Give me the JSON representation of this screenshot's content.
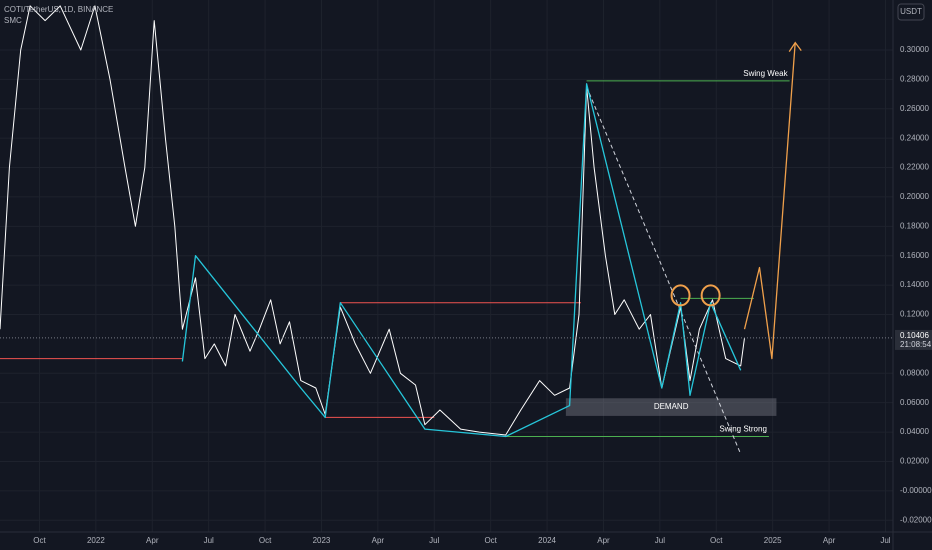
{
  "chart_data": {
    "type": "line",
    "title": "COTI/TetherUS, 1D, BINANCE",
    "subtitle": "SMC",
    "currency": "USDT",
    "last_price": 0.10406,
    "countdown": "21:08:54",
    "xlim": [
      -2.1,
      45.4
    ],
    "ylim": [
      -0.028,
      0.334
    ],
    "grid": true,
    "xticks": [
      {
        "value": 0,
        "label": "Oct"
      },
      {
        "value": 3,
        "label": "2022"
      },
      {
        "value": 6,
        "label": "Apr"
      },
      {
        "value": 9,
        "label": "Jul"
      },
      {
        "value": 12,
        "label": "Oct"
      },
      {
        "value": 15,
        "label": "2023"
      },
      {
        "value": 18,
        "label": "Apr"
      },
      {
        "value": 21,
        "label": "Jul"
      },
      {
        "value": 24,
        "label": "Oct"
      },
      {
        "value": 27,
        "label": "2024"
      },
      {
        "value": 30,
        "label": "Apr"
      },
      {
        "value": 33,
        "label": "Jul"
      },
      {
        "value": 36,
        "label": "Oct"
      },
      {
        "value": 39,
        "label": "2025"
      },
      {
        "value": 42,
        "label": "Apr"
      },
      {
        "value": 45,
        "label": "Jul"
      }
    ],
    "yticks": [
      {
        "value": 0.3,
        "label": "0.30000"
      },
      {
        "value": 0.28,
        "label": "0.28000"
      },
      {
        "value": 0.26,
        "label": "0.26000"
      },
      {
        "value": 0.24,
        "label": "0.24000"
      },
      {
        "value": 0.22,
        "label": "0.22000"
      },
      {
        "value": 0.2,
        "label": "0.20000"
      },
      {
        "value": 0.18,
        "label": "0.18000"
      },
      {
        "value": 0.16,
        "label": "0.16000"
      },
      {
        "value": 0.14,
        "label": "0.14000"
      },
      {
        "value": 0.12,
        "label": "0.12000"
      },
      {
        "value": 0.08,
        "label": "0.08000"
      },
      {
        "value": 0.06,
        "label": "0.06000"
      },
      {
        "value": 0.04,
        "label": "0.04000"
      },
      {
        "value": 0.02,
        "label": "0.02000"
      },
      {
        "value": 0,
        "label": "-0.00000"
      },
      {
        "value": -0.02,
        "label": "-0.02000"
      }
    ],
    "series": [
      {
        "color": "#ffffff",
        "x": [
          -2.1,
          -1.6,
          -1.0,
          -0.5,
          0.3,
          1.1,
          2.2,
          2.95,
          3.75,
          4.55,
          5.1,
          5.6,
          6.1,
          6.7,
          7.2,
          7.6,
          8.0,
          8.3,
          8.8,
          9.3,
          9.9,
          10.4,
          11.2,
          11.7,
          12.3,
          12.8,
          13.3,
          13.9,
          14.7,
          15.2,
          16.0,
          16.8,
          17.6,
          18.6,
          19.2,
          20.0,
          20.5,
          21.3,
          22.4,
          23.4,
          24.8,
          25.6,
          26.6,
          27.4,
          28.2,
          28.7,
          29.1,
          29.5,
          30.1,
          30.6,
          31.1,
          31.9,
          32.5,
          33.1,
          34.1,
          34.6,
          35.1,
          35.8,
          36.5,
          37.3,
          37.5
        ],
        "values": [
          0.11,
          0.22,
          0.3,
          0.33,
          0.32,
          0.33,
          0.3,
          0.33,
          0.28,
          0.22,
          0.18,
          0.22,
          0.32,
          0.24,
          0.18,
          0.11,
          0.13,
          0.145,
          0.09,
          0.1,
          0.085,
          0.12,
          0.095,
          0.11,
          0.13,
          0.1,
          0.115,
          0.075,
          0.07,
          0.052,
          0.125,
          0.1,
          0.08,
          0.11,
          0.08,
          0.072,
          0.045,
          0.055,
          0.042,
          0.04,
          0.038,
          0.055,
          0.075,
          0.065,
          0.07,
          0.12,
          0.275,
          0.22,
          0.16,
          0.12,
          0.13,
          0.11,
          0.12,
          0.07,
          0.125,
          0.075,
          0.11,
          0.13,
          0.09,
          0.085,
          0.104
        ]
      },
      {
        "color": "#26c6da",
        "x": [
          7.6,
          8.3,
          13.9,
          15.2,
          16.0,
          20.5,
          24.8,
          28.2,
          29.1,
          33.1,
          34.1,
          34.6,
          35.7,
          37.3
        ],
        "values": [
          0.088,
          0.16,
          0.07,
          0.05,
          0.128,
          0.042,
          0.037,
          0.058,
          0.277,
          0.07,
          0.128,
          0.065,
          0.128,
          0.082
        ]
      },
      {
        "color": "#f0a04b",
        "x": [
          37.5,
          38.3,
          38.96,
          40.2
        ],
        "values": [
          0.11,
          0.152,
          0.09,
          0.305
        ]
      }
    ],
    "levels": [
      {
        "value": 0.279,
        "from": 29.1,
        "to": 39.9,
        "color": "#4caf50",
        "label": "Swing Weak"
      },
      {
        "value": 0.037,
        "from": 24.8,
        "to": 38.8,
        "color": "#4caf50",
        "label": "Swing Strong"
      },
      {
        "value": 0.128,
        "from": 16.0,
        "to": 28.8,
        "color": "#ef5350"
      },
      {
        "value": 0.09,
        "from": -2.1,
        "to": 7.6,
        "color": "#ef5350"
      },
      {
        "value": 0.05,
        "from": 15.2,
        "to": 21.0,
        "color": "#ef5350"
      },
      {
        "value": 0.131,
        "from": 34.1,
        "to": 38.0,
        "color": "#4caf50"
      }
    ],
    "zone": {
      "low": 0.051,
      "high": 0.063,
      "from": 28.0,
      "to": 39.2,
      "label": "DEMAND"
    },
    "trendline": {
      "x": [
        29.1,
        37.3
      ],
      "values": [
        0.275,
        0.025
      ]
    },
    "highlights": {
      "x": [
        34.1,
        35.7
      ],
      "values": [
        0.133,
        0.133
      ],
      "color": "#f0a04b"
    }
  }
}
